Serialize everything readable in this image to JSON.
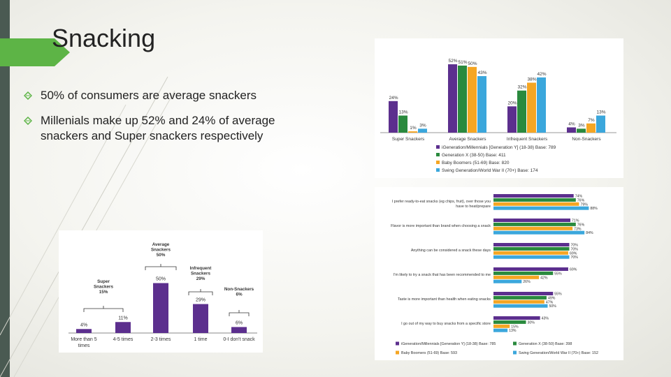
{
  "slide": {
    "title": "Snacking",
    "bullets": [
      "50% of consumers are average snackers",
      "Millenials make up 52% and 24% of average snackers and Super snackers respectively"
    ]
  },
  "colors": {
    "purple": "#5c2f8e",
    "green": "#2a8a3e",
    "orange": "#f5a623",
    "blue": "#3ba7dc",
    "accent": "#5db446"
  },
  "chart_data": [
    {
      "id": "snacker-types-by-generation",
      "type": "bar",
      "categories": [
        "Super Snackers",
        "Average Snackers",
        "Infrequent Snackers",
        "Non-Snackers"
      ],
      "series": [
        {
          "name": "iGeneration/Millennials [Generation Y] (18-38) Base: 789",
          "values": [
            24,
            52,
            20,
            4
          ],
          "labels": [
            "24%",
            "52%",
            "20%",
            "4%"
          ]
        },
        {
          "name": "Generation X (38-50) Base: 411",
          "values": [
            13,
            51,
            32,
            3
          ],
          "labels": [
            "13%",
            "51%",
            "32%",
            "3%"
          ]
        },
        {
          "name": "Baby Boomers (51-69) Base: 820",
          "values": [
            1,
            50,
            38,
            7
          ],
          "labels": [
            "1%",
            "50%",
            "38%",
            "7%"
          ]
        },
        {
          "name": "Swing Generation/World War II (70+) Base: 174",
          "values": [
            3,
            43,
            42,
            13
          ],
          "labels": [
            "3%",
            "43%",
            "42%",
            "13%"
          ]
        }
      ],
      "ylim": [
        0,
        60
      ]
    },
    {
      "id": "snacking-attitudes",
      "type": "bar",
      "orientation": "horizontal",
      "categories": [
        "I prefer ready-to-eat snacks (eg chips, fruit), over those you have to heat/prepare",
        "Flavor is more important than brand when choosing a snack",
        "Anything can be considered a snack these days",
        "I'm likely to try a snack that has been recommended to me",
        "Taste is more important than health when eating snacks",
        "I go out of my way to buy snacks from a specific store"
      ],
      "series": [
        {
          "name": "iGeneration/Millennials [Generation Y] (18-38) Base: 785",
          "values": [
            74,
            71,
            70,
            69,
            55,
            43
          ],
          "labels": [
            "74%",
            "71%",
            "70%",
            "69%",
            "55%",
            "43%"
          ]
        },
        {
          "name": "Generation X (38-50) Base: 398",
          "values": [
            76,
            76,
            70,
            55,
            49,
            30
          ],
          "labels": [
            "76%",
            "76%",
            "70%",
            "55%",
            "49%",
            "30%"
          ]
        },
        {
          "name": "Baby Boomers (51-69) Base: 593",
          "values": [
            79,
            73,
            69,
            42,
            47,
            15
          ],
          "labels": [
            "79%",
            "73%",
            "69%",
            "42%",
            "47%",
            "15%"
          ]
        },
        {
          "name": "Swing Generation/World War II (70+) Base: 152",
          "values": [
            88,
            84,
            70,
            26,
            50,
            13
          ],
          "labels": [
            "88%",
            "84%",
            "70%",
            "26%",
            "50%",
            "13%"
          ]
        }
      ],
      "xlim": [
        0,
        100
      ]
    },
    {
      "id": "snacking-frequency",
      "type": "bar",
      "categories": [
        "More than 5 times",
        "4-5 times",
        "2-3 times",
        "1 time",
        "0-I don't snack"
      ],
      "values": [
        4,
        11,
        50,
        29,
        6
      ],
      "labels": [
        "4%",
        "11%",
        "50%",
        "29%",
        "6%"
      ],
      "annotations": [
        {
          "text": "Super Snackers 15%",
          "lines": [
            "Super",
            "Snackers",
            "15%"
          ]
        },
        {
          "text": "Average Snackers 50%",
          "lines": [
            "Average",
            "Snackers",
            "50%"
          ]
        },
        {
          "text": "Infrequent Snackers 29%",
          "lines": [
            "Infrequent",
            "Snackers",
            "29%"
          ]
        },
        {
          "text": "Non-Snackers 6%",
          "lines": [
            "Non-Snackers",
            "6%"
          ]
        }
      ],
      "ylim": [
        0,
        60
      ]
    }
  ]
}
